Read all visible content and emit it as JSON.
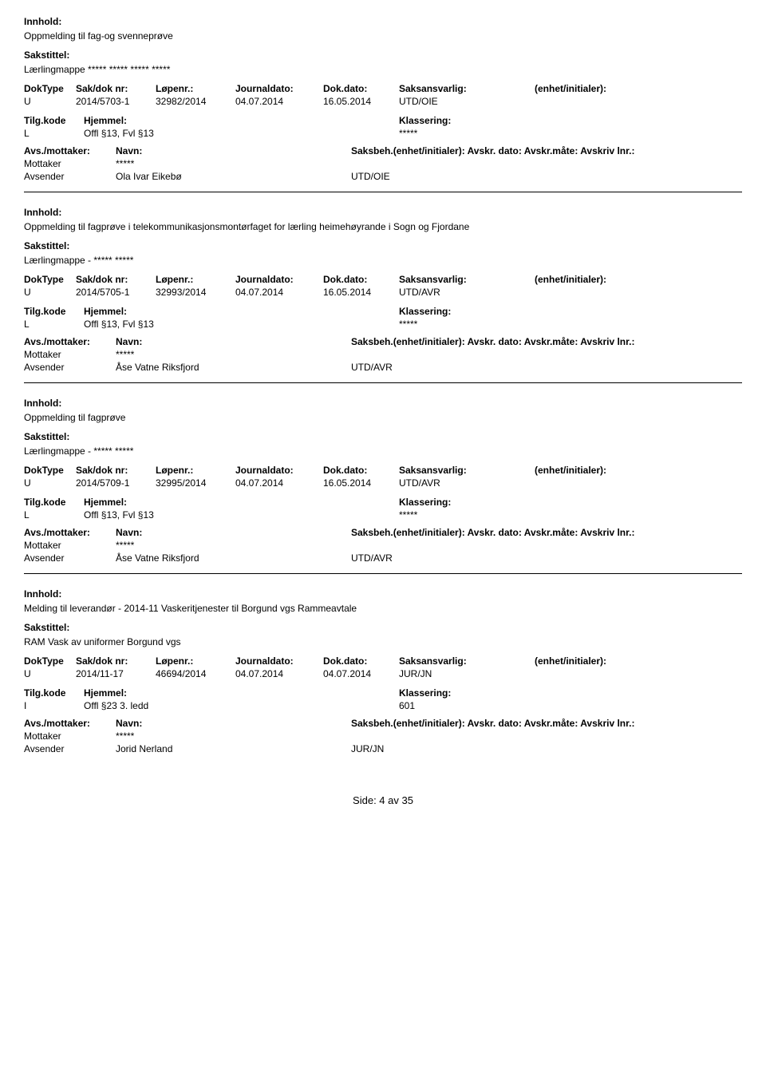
{
  "labels": {
    "innhold": "Innhold:",
    "sakstittel": "Sakstittel:",
    "doktype": "DokType",
    "sakdoknr": "Sak/dok nr:",
    "lopenr": "Løpenr.:",
    "journaldato": "Journaldato:",
    "dokdato": "Dok.dato:",
    "saksansvarlig": "Saksansvarlig:",
    "enhet": "(enhet/initialer):",
    "tilgkode": "Tilg.kode",
    "hjemmel": "Hjemmel:",
    "klassering": "Klassering:",
    "avsmottaker": "Avs./mottaker:",
    "navn": "Navn:",
    "saksbeh": "Saksbeh.(enhet/initialer): Avskr. dato:  Avskr.måte:  Avskriv lnr.:",
    "mottaker": "Mottaker",
    "avsender": "Avsender"
  },
  "entries": [
    {
      "innhold": "Oppmelding til fag-og svenneprøve",
      "sakstittel": "Lærlingmappe ***** ***** ***** *****",
      "doktype": "U",
      "sakdoknr": "2014/5703-1",
      "lopenr": "32982/2014",
      "journaldato": "04.07.2014",
      "dokdato": "16.05.2014",
      "saksansvarlig": "UTD/OIE",
      "enhet": "",
      "tilgkode": "L",
      "hjemmel": "Offl §13, Fvl §13",
      "klassering": "*****",
      "avsmot_suppress_header": true,
      "mottaker_navn": "*****",
      "avsender_navn": "Ola Ivar Eikebø",
      "avsender_unit": "UTD/OIE"
    },
    {
      "innhold": "Oppmelding til fagprøve i telekommunikasjonsmontørfaget for lærling heimehøyrande i Sogn og Fjordane",
      "sakstittel": "Lærlingmappe - ***** *****",
      "doktype": "U",
      "sakdoknr": "2014/5705-1",
      "lopenr": "32993/2014",
      "journaldato": "04.07.2014",
      "dokdato": "16.05.2014",
      "saksansvarlig": "UTD/AVR",
      "enhet": "",
      "tilgkode": "L",
      "hjemmel": "Offl §13, Fvl §13",
      "klassering": "*****",
      "avsmot_suppress_header": true,
      "mottaker_navn": "*****",
      "avsender_navn": "Åse Vatne Riksfjord",
      "avsender_unit": "UTD/AVR"
    },
    {
      "innhold": "Oppmelding til fagprøve",
      "sakstittel": "Lærlingmappe - ***** *****",
      "doktype": "U",
      "sakdoknr": "2014/5709-1",
      "lopenr": "32995/2014",
      "journaldato": "04.07.2014",
      "dokdato": "16.05.2014",
      "saksansvarlig": "UTD/AVR",
      "enhet": "",
      "tilgkode": "L",
      "hjemmel": "Offl §13, Fvl §13",
      "klassering": "*****",
      "avsmot_suppress_header": false,
      "mottaker_navn": "*****",
      "avsender_navn": "Åse Vatne Riksfjord",
      "avsender_unit": "UTD/AVR"
    },
    {
      "innhold": "Melding til leverandør - 2014-11  Vaskeritjenester til Borgund vgs Rammeavtale",
      "sakstittel": "RAM Vask av uniformer Borgund vgs",
      "doktype": "U",
      "sakdoknr": "2014/11-17",
      "lopenr": "46694/2014",
      "journaldato": "04.07.2014",
      "dokdato": "04.07.2014",
      "saksansvarlig": "JUR/JN",
      "enhet": "",
      "tilgkode": "I",
      "hjemmel": "Offl §23 3. ledd",
      "klassering": "601",
      "avsmot_suppress_header": false,
      "mottaker_navn": "*****",
      "avsender_navn": "Jorid Nerland",
      "avsender_unit": "JUR/JN"
    }
  ],
  "footer": "Side: 4 av 35"
}
